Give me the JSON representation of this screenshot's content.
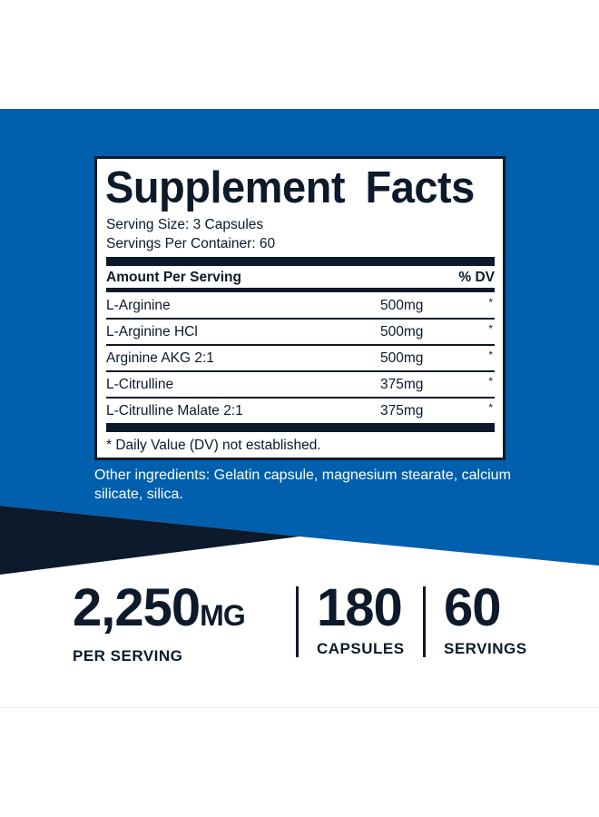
{
  "colors": {
    "blue": "#0060ae",
    "navy": "#0d1a2b",
    "white": "#ffffff"
  },
  "facts": {
    "title": "Supplement Facts",
    "serving_size": "Serving Size: 3 Capsules",
    "servings_per_container": "Servings Per Container: 60",
    "header_amount": "Amount Per Serving",
    "header_dv": "% DV",
    "rows": [
      {
        "name": "L-Arginine",
        "amount": "500mg",
        "dv": "*"
      },
      {
        "name": "L-Arginine HCl",
        "amount": "500mg",
        "dv": "*"
      },
      {
        "name": "Arginine AKG 2:1",
        "amount": "500mg",
        "dv": "*"
      },
      {
        "name": "L-Citrulline",
        "amount": "375mg",
        "dv": "*"
      },
      {
        "name": "L-Citrulline Malate 2:1",
        "amount": "375mg",
        "dv": "*"
      }
    ],
    "footnote": "* Daily Value (DV) not established."
  },
  "other_ingredients": "Other ingredients: Gelatin capsule, magnesium stearate, calcium silicate, silica.",
  "stats": [
    {
      "value": "2,250",
      "unit": "MG",
      "label": "PER SERVING"
    },
    {
      "value": "180",
      "unit": "",
      "label": "CAPSULES"
    },
    {
      "value": "60",
      "unit": "",
      "label": "SERVINGS"
    }
  ]
}
